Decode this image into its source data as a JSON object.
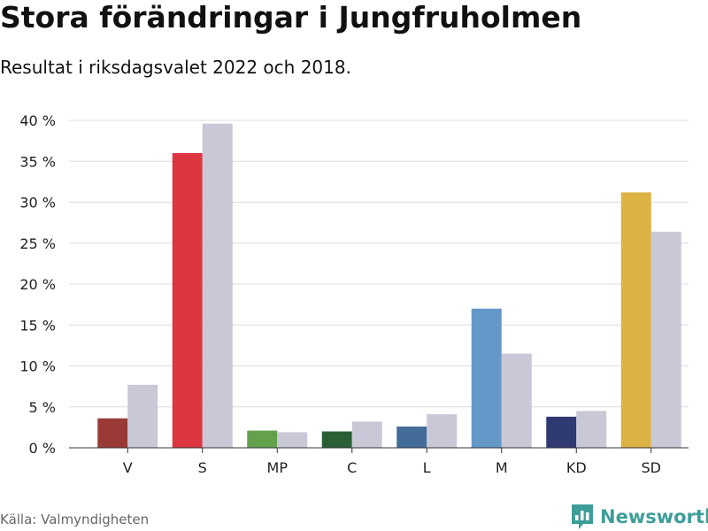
{
  "title": "Stora förändringar i Jungfruholmen",
  "subtitle": "Resultat i riksdagsvalet 2022 och 2018.",
  "source": "Källa: Valmyndigheten",
  "brand": {
    "name": "Newsworthy",
    "icon": "bar-chart-logo-icon",
    "color": "#3d9e98"
  },
  "chart_data": {
    "type": "bar",
    "categories": [
      "V",
      "S",
      "MP",
      "C",
      "L",
      "M",
      "KD",
      "SD"
    ],
    "series": [
      {
        "values": [
          3.6,
          36.0,
          2.1,
          2.0,
          2.6,
          17.0,
          3.8,
          31.2
        ]
      },
      {
        "values": [
          7.7,
          39.6,
          1.9,
          3.2,
          4.1,
          11.5,
          4.5,
          26.4
        ]
      }
    ],
    "colors_2022": [
      "#9a3a36",
      "#dc3640",
      "#63a14d",
      "#2a5f35",
      "#446c99",
      "#6498c8",
      "#2f3a72",
      "#ddb244"
    ],
    "color_2018": "#c9c8d6",
    "ylim": [
      0,
      40
    ],
    "yticks": [
      0,
      5,
      10,
      15,
      20,
      25,
      30,
      35,
      40
    ],
    "ytick_labels": [
      "0 %",
      "5 %",
      "10 %",
      "15 %",
      "20 %",
      "25 %",
      "30 %",
      "35 %",
      "40 %"
    ],
    "grid": true,
    "xlabel": "",
    "ylabel": ""
  }
}
